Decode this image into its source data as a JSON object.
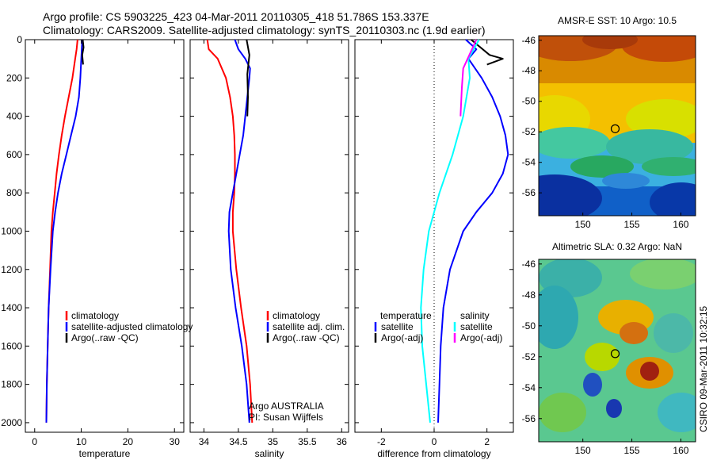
{
  "header": {
    "title": "Argo profile: CS 5903225_423 04-Mar-2011 20110305_418 51.786S 153.337E",
    "subtitle": "Climatology: CARS2009. Satellite-adjusted climatology: synTS_20110303.nc (1.9d earlier)"
  },
  "colors": {
    "red": "#ff0000",
    "blue": "#0000ff",
    "black": "#000000",
    "cyan": "#00ffff",
    "magenta": "#ff00ff"
  },
  "chart_data": [
    {
      "id": "temperature",
      "type": "line",
      "xlabel": "temperature",
      "xlim": [
        -2,
        32
      ],
      "ylim": [
        0,
        2050
      ],
      "y_reversed": true,
      "xticks": [
        "0",
        "10",
        "20",
        "30"
      ],
      "yticks": [
        "0",
        "200",
        "400",
        "600",
        "800",
        "1000",
        "1200",
        "1400",
        "1600",
        "1800",
        "2000"
      ],
      "legend": [
        {
          "label": "climatology",
          "color": "red"
        },
        {
          "label": "satellite-adjusted climatology",
          "color": "blue"
        },
        {
          "label": "Argo(..raw -QC)",
          "color": "black"
        }
      ],
      "series": [
        {
          "name": "climatology",
          "color": "red",
          "points": [
            [
              9.2,
              0
            ],
            [
              9.0,
              50
            ],
            [
              8.7,
              100
            ],
            [
              8.1,
              200
            ],
            [
              7.3,
              300
            ],
            [
              6.5,
              400
            ],
            [
              5.8,
              500
            ],
            [
              5.2,
              600
            ],
            [
              4.7,
              700
            ],
            [
              4.3,
              800
            ],
            [
              3.9,
              900
            ],
            [
              3.6,
              1000
            ],
            [
              3.3,
              1200
            ],
            [
              3.0,
              1400
            ],
            [
              2.8,
              1600
            ],
            [
              2.6,
              1800
            ],
            [
              2.5,
              2000
            ]
          ]
        },
        {
          "name": "satellite-adjusted climatology",
          "color": "blue",
          "points": [
            [
              10.2,
              0
            ],
            [
              10.1,
              50
            ],
            [
              10.0,
              100
            ],
            [
              9.8,
              200
            ],
            [
              9.5,
              300
            ],
            [
              8.8,
              400
            ],
            [
              7.8,
              500
            ],
            [
              6.8,
              600
            ],
            [
              5.8,
              700
            ],
            [
              5.0,
              800
            ],
            [
              4.4,
              900
            ],
            [
              3.9,
              1000
            ],
            [
              3.4,
              1200
            ],
            [
              3.0,
              1400
            ],
            [
              2.8,
              1600
            ],
            [
              2.6,
              1800
            ],
            [
              2.5,
              2000
            ]
          ]
        },
        {
          "name": "Argo(..raw -QC)",
          "color": "black",
          "points": [
            [
              10.3,
              0
            ],
            [
              10.5,
              40
            ],
            [
              10.2,
              80
            ],
            [
              10.4,
              130
            ]
          ]
        }
      ]
    },
    {
      "id": "salinity",
      "type": "line",
      "xlabel": "salinity",
      "xlim": [
        33.8,
        36.1
      ],
      "ylim": [
        0,
        2050
      ],
      "y_reversed": true,
      "xticks": [
        "34",
        "34.5",
        "35",
        "35.5",
        "36"
      ],
      "legend": [
        {
          "label": "climatology",
          "color": "red"
        },
        {
          "label": "satellite adj. clim.",
          "color": "blue"
        },
        {
          "label": "Argo(..raw -QC)",
          "color": "black"
        }
      ],
      "annotations": [
        "Argo AUSTRALIA",
        "PI: Susan Wijffels"
      ],
      "series": [
        {
          "name": "climatology",
          "color": "red",
          "points": [
            [
              34.05,
              0
            ],
            [
              34.07,
              50
            ],
            [
              34.2,
              100
            ],
            [
              34.32,
              200
            ],
            [
              34.38,
              300
            ],
            [
              34.42,
              400
            ],
            [
              34.44,
              500
            ],
            [
              34.45,
              600
            ],
            [
              34.45,
              700
            ],
            [
              34.44,
              800
            ],
            [
              34.42,
              900
            ],
            [
              34.42,
              1000
            ],
            [
              34.47,
              1200
            ],
            [
              34.54,
              1400
            ],
            [
              34.62,
              1600
            ],
            [
              34.67,
              1800
            ],
            [
              34.7,
              2000
            ]
          ]
        },
        {
          "name": "satellite adj. clim.",
          "color": "blue",
          "points": [
            [
              34.45,
              0
            ],
            [
              34.5,
              50
            ],
            [
              34.6,
              100
            ],
            [
              34.67,
              150
            ],
            [
              34.66,
              200
            ],
            [
              34.63,
              300
            ],
            [
              34.6,
              400
            ],
            [
              34.57,
              500
            ],
            [
              34.52,
              600
            ],
            [
              34.47,
              700
            ],
            [
              34.42,
              800
            ],
            [
              34.37,
              900
            ],
            [
              34.36,
              1000
            ],
            [
              34.39,
              1200
            ],
            [
              34.46,
              1400
            ],
            [
              34.55,
              1600
            ],
            [
              34.62,
              1800
            ],
            [
              34.66,
              2000
            ]
          ]
        },
        {
          "name": "Argo(..raw -QC)",
          "color": "black",
          "points": [
            [
              34.62,
              0
            ],
            [
              34.66,
              80
            ],
            [
              34.63,
              180
            ],
            [
              34.64,
              300
            ],
            [
              34.63,
              400
            ]
          ]
        }
      ]
    },
    {
      "id": "difference",
      "type": "line",
      "xlabel": "difference from climatology",
      "xlim": [
        -3,
        3
      ],
      "ylim": [
        0,
        2050
      ],
      "y_reversed": true,
      "xticks": [
        "-2",
        "0",
        "2"
      ],
      "legend_headers": [
        "temperature",
        "salinity"
      ],
      "legend": [
        {
          "label": "satellite",
          "color": "blue",
          "group": "temperature"
        },
        {
          "label": "Argo(-adj)",
          "color": "black",
          "group": "temperature"
        },
        {
          "label": "satellite",
          "color": "cyan",
          "group": "salinity"
        },
        {
          "label": "Argo(-adj)",
          "color": "magenta",
          "group": "salinity"
        }
      ],
      "series": [
        {
          "name": "temperature satellite",
          "color": "blue",
          "points": [
            [
              1.2,
              0
            ],
            [
              1.6,
              50
            ],
            [
              1.3,
              100
            ],
            [
              1.8,
              200
            ],
            [
              2.2,
              300
            ],
            [
              2.5,
              400
            ],
            [
              2.7,
              500
            ],
            [
              2.8,
              600
            ],
            [
              2.6,
              700
            ],
            [
              2.2,
              800
            ],
            [
              1.6,
              900
            ],
            [
              1.1,
              1000
            ],
            [
              0.6,
              1200
            ],
            [
              0.35,
              1400
            ],
            [
              0.25,
              1600
            ],
            [
              0.2,
              1800
            ],
            [
              0.15,
              2000
            ]
          ]
        },
        {
          "name": "temperature Argo(-adj)",
          "color": "black",
          "points": [
            [
              1.4,
              0
            ],
            [
              2.1,
              80
            ],
            [
              2.6,
              100
            ],
            [
              2.0,
              130
            ]
          ]
        },
        {
          "name": "salinity satellite",
          "color": "cyan",
          "points": [
            [
              1.7,
              0
            ],
            [
              1.3,
              100
            ],
            [
              1.35,
              200
            ],
            [
              1.1,
              400
            ],
            [
              0.7,
              600
            ],
            [
              0.2,
              800
            ],
            [
              -0.2,
              1000
            ],
            [
              -0.4,
              1200
            ],
            [
              -0.5,
              1400
            ],
            [
              -0.45,
              1600
            ],
            [
              -0.3,
              1800
            ],
            [
              -0.15,
              2000
            ]
          ]
        },
        {
          "name": "salinity Argo(-adj)",
          "color": "magenta",
          "points": [
            [
              1.6,
              0
            ],
            [
              1.1,
              150
            ],
            [
              1.05,
              250
            ],
            [
              1.0,
              400
            ]
          ]
        }
      ]
    },
    {
      "id": "sst_map",
      "type": "heatmap",
      "title": "AMSR-E SST: 10 Argo: 10.5",
      "xlim": [
        145.5,
        161.5
      ],
      "ylim": [
        -57.5,
        -45.7
      ],
      "xticks": [
        "150",
        "155",
        "160"
      ],
      "yticks": [
        "-46",
        "-48",
        "-50",
        "-52",
        "-54",
        "-56"
      ],
      "marker": {
        "lon": 153.3,
        "lat": -51.8
      }
    },
    {
      "id": "sla_map",
      "type": "heatmap",
      "title": "Altimetric SLA: 0.32 Argo: NaN",
      "xlim": [
        145.5,
        161.5
      ],
      "ylim": [
        -57.5,
        -45.7
      ],
      "xticks": [
        "150",
        "155",
        "160"
      ],
      "yticks": [
        "-46",
        "-48",
        "-50",
        "-52",
        "-54",
        "-56"
      ],
      "marker": {
        "lon": 153.3,
        "lat": -51.8
      }
    }
  ],
  "footer": {
    "side_note": "CSIRO 09-Mar-2011 10:32:15"
  }
}
